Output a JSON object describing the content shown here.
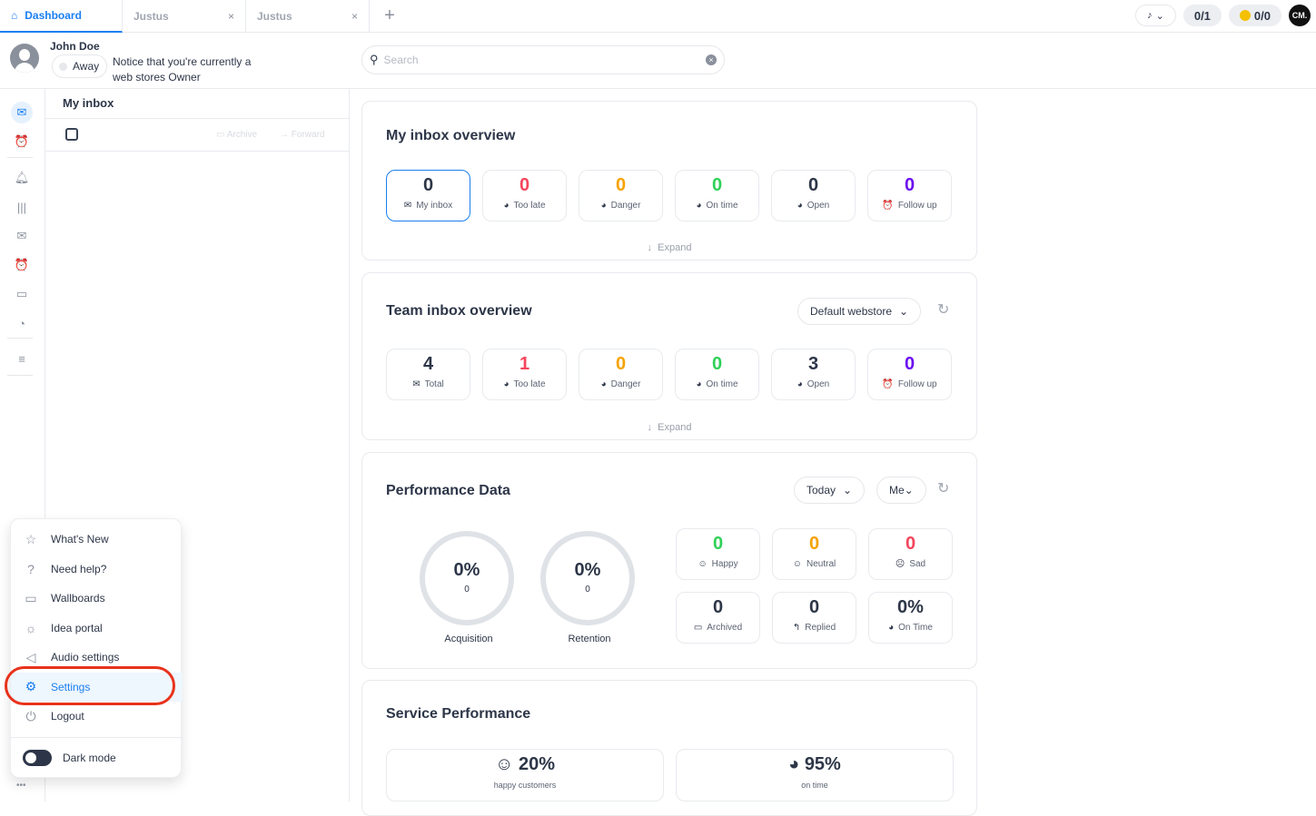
{
  "tabs": [
    {
      "label": "Dashboard",
      "icon": "home-icon",
      "active": true
    },
    {
      "label": "Justus",
      "close": "×"
    },
    {
      "label": "Justus",
      "close": "×"
    }
  ],
  "new_tab": "+",
  "topbar": {
    "audio_menu": "⌄",
    "counter1": "0/1",
    "counter2": "0/0",
    "logo": "CM."
  },
  "user": {
    "name": "John Doe",
    "status": "Away",
    "notice": "Notice that you're currently a web stores Owner"
  },
  "search": {
    "placeholder": "Search",
    "value": ""
  },
  "inbox": {
    "title": "My inbox",
    "archive": "Archive",
    "forward": "Forward"
  },
  "my_overview": {
    "title": "My inbox overview",
    "expand": "Expand",
    "stats": [
      {
        "value": "0",
        "label": "My inbox",
        "icon": "inbox-icon",
        "color": "#2d3648"
      },
      {
        "value": "0",
        "label": "Too late",
        "icon": "clock-icon",
        "color": "#f5455c"
      },
      {
        "value": "0",
        "label": "Danger",
        "icon": "clock-icon",
        "color": "#f5a300"
      },
      {
        "value": "0",
        "label": "On time",
        "icon": "clock-icon",
        "color": "#2fd158"
      },
      {
        "value": "0",
        "label": "Open",
        "icon": "clock-icon",
        "color": "#2d3648"
      },
      {
        "value": "0",
        "label": "Follow up",
        "icon": "alarm-icon",
        "color": "#6a0cf0"
      }
    ]
  },
  "team_overview": {
    "title": "Team inbox overview",
    "webstore": "Default webstore",
    "expand": "Expand",
    "stats": [
      {
        "value": "4",
        "label": "Total",
        "icon": "inbox-icon",
        "color": "#2d3648"
      },
      {
        "value": "1",
        "label": "Too late",
        "icon": "clock-icon",
        "color": "#f5455c"
      },
      {
        "value": "0",
        "label": "Danger",
        "icon": "clock-icon",
        "color": "#f5a300"
      },
      {
        "value": "0",
        "label": "On time",
        "icon": "clock-icon",
        "color": "#2fd158"
      },
      {
        "value": "3",
        "label": "Open",
        "icon": "clock-icon",
        "color": "#2d3648"
      },
      {
        "value": "0",
        "label": "Follow up",
        "icon": "alarm-icon",
        "color": "#6a0cf0"
      }
    ]
  },
  "performance": {
    "title": "Performance Data",
    "period": "Today",
    "scope": "Me",
    "rings": [
      {
        "percent": "0%",
        "count": "0",
        "label": "Acquisition"
      },
      {
        "percent": "0%",
        "count": "0",
        "label": "Retention"
      }
    ],
    "stats": [
      {
        "value": "0",
        "label": "Happy",
        "icon": "smile-icon",
        "color": "#2fd158"
      },
      {
        "value": "0",
        "label": "Neutral",
        "icon": "neutral-face-icon",
        "color": "#f5a300"
      },
      {
        "value": "0",
        "label": "Sad",
        "icon": "sad-face-icon",
        "color": "#f5455c"
      },
      {
        "value": "0",
        "label": "Archived",
        "icon": "archive-icon",
        "color": "#2d3648"
      },
      {
        "value": "0",
        "label": "Replied",
        "icon": "reply-icon",
        "color": "#2d3648"
      },
      {
        "value": "0%",
        "label": "On Time",
        "icon": "clock-icon",
        "color": "#2d3648"
      }
    ]
  },
  "service": {
    "title": "Service Performance",
    "items": [
      {
        "value": "20%",
        "label": "happy customers",
        "icon": "smile-icon"
      },
      {
        "value": "95%",
        "label": "on time",
        "icon": "clock-icon"
      }
    ]
  },
  "menu": {
    "items": [
      {
        "label": "What's New",
        "icon": "star-icon"
      },
      {
        "label": "Need help?",
        "icon": "help-icon"
      },
      {
        "label": "Wallboards",
        "icon": "monitor-icon"
      },
      {
        "label": "Idea portal",
        "icon": "lightbulb-icon"
      },
      {
        "label": "Audio settings",
        "icon": "speaker-icon"
      },
      {
        "label": "Settings",
        "icon": "gear-icon",
        "active": true
      },
      {
        "label": "Logout",
        "icon": "power-icon"
      }
    ],
    "dark_mode": "Dark mode",
    "dark_mode_on": false
  },
  "more": "•••",
  "colors": {
    "accent": "#1a7ff0",
    "highlight": "#e8321c"
  }
}
